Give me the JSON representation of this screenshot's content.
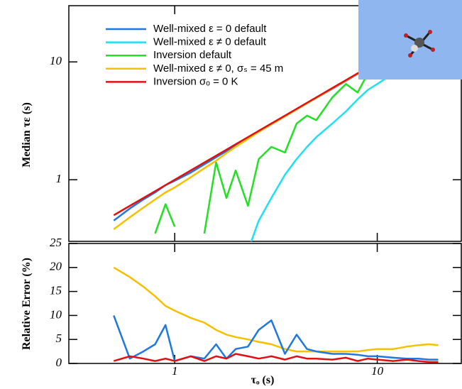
{
  "chart_data": [
    {
      "type": "line",
      "ylabel": "Median τε (s)",
      "xscale": "log",
      "yscale": "log",
      "xlim": [
        0.3,
        26
      ],
      "ylim": [
        0.3,
        30
      ],
      "yticks": [
        1,
        10
      ],
      "legend": "upper left",
      "x": [
        0.5,
        0.6,
        0.7,
        0.8,
        0.9,
        1,
        1.2,
        1.4,
        1.6,
        1.8,
        2,
        2.3,
        2.6,
        3,
        3.5,
        4,
        4.5,
        5,
        6,
        7,
        8,
        9,
        10,
        12,
        14,
        16,
        18,
        20
      ],
      "series": [
        {
          "name": "Well-mixed ε = 0 default",
          "color": "#1f77e0",
          "values": [
            0.45,
            0.57,
            0.68,
            0.78,
            0.9,
            0.98,
            1.15,
            1.35,
            1.55,
            1.75,
            1.95,
            2.25,
            2.55,
            2.95,
            3.45,
            3.95,
            4.45,
            4.95,
            5.9,
            6.9,
            7.9,
            8.9,
            9.9,
            11.8,
            13.8,
            15.8,
            17.8,
            19.8
          ]
        },
        {
          "name": "Well-mixed ε ≠ 0 default",
          "color": "#1ee0f0",
          "values": [
            null,
            null,
            null,
            null,
            null,
            null,
            null,
            null,
            null,
            null,
            null,
            0.25,
            0.45,
            0.7,
            1.1,
            1.5,
            1.9,
            2.3,
            3.0,
            3.8,
            4.8,
            5.8,
            6.5,
            8,
            10,
            11.5,
            13,
            15
          ]
        },
        {
          "name": "Inversion default",
          "color": "#22e022",
          "values": [
            null,
            null,
            null,
            0.35,
            0.62,
            0.4,
            null,
            0.35,
            1.4,
            0.7,
            1.2,
            0.6,
            1.5,
            1.9,
            1.7,
            3,
            3.5,
            3.2,
            5,
            6.5,
            5.5,
            8,
            9.5,
            12,
            14,
            16,
            18,
            20
          ]
        },
        {
          "name": "Well-mixed ε ≠ 0, σₛ = 45 m",
          "color": "#f5c000",
          "values": [
            0.38,
            0.48,
            0.58,
            0.68,
            0.78,
            0.86,
            1.05,
            1.25,
            1.45,
            1.68,
            1.9,
            2.22,
            2.55,
            2.95,
            3.45,
            3.95,
            4.45,
            4.95,
            5.95,
            6.95,
            7.95,
            8.95,
            9.95,
            11.9,
            13.9,
            15.9,
            17.9,
            19.9
          ]
        },
        {
          "name": "Inversion σₒ = 0 K",
          "color": "#e01010",
          "values": [
            0.5,
            0.6,
            0.7,
            0.8,
            0.9,
            1,
            1.2,
            1.4,
            1.6,
            1.8,
            2,
            2.3,
            2.6,
            3,
            3.5,
            4,
            4.5,
            5,
            6,
            7,
            8,
            9,
            10,
            12,
            14,
            16,
            18,
            20
          ]
        }
      ]
    },
    {
      "type": "line",
      "ylabel": "Relative Error (%)",
      "xlabel": "τₒ (s)",
      "xscale": "log",
      "xlim": [
        0.3,
        26
      ],
      "ylim": [
        0,
        25
      ],
      "yticks": [
        0,
        5,
        10,
        15,
        20,
        25
      ],
      "xticks": [
        1,
        10
      ],
      "x": [
        0.5,
        0.6,
        0.7,
        0.8,
        0.9,
        1,
        1.2,
        1.4,
        1.6,
        1.8,
        2,
        2.3,
        2.6,
        3,
        3.5,
        4,
        4.5,
        5,
        6,
        7,
        8,
        9,
        10,
        12,
        14,
        16,
        18,
        20
      ],
      "series": [
        {
          "color": "#f5c000",
          "values": [
            20,
            18,
            16,
            14,
            12,
            11,
            9.5,
            8.5,
            7,
            6,
            5.5,
            5,
            4.5,
            4,
            3,
            2.5,
            2.5,
            2.5,
            2.5,
            2.5,
            2.5,
            2.8,
            3,
            3,
            3.5,
            3.8,
            4,
            3.8
          ]
        },
        {
          "color": "#1f77e0",
          "values": [
            10,
            1,
            2.5,
            4,
            8,
            0.5,
            1.5,
            1,
            4,
            1,
            3,
            3.5,
            7,
            9,
            2,
            6,
            3,
            2.5,
            2,
            2,
            1.8,
            1.5,
            1.5,
            1.2,
            1,
            1,
            0.8,
            0.8
          ]
        },
        {
          "color": "#e01010",
          "values": [
            0.5,
            1.5,
            1,
            0.5,
            1,
            0.5,
            1.5,
            0.5,
            1.5,
            1,
            2,
            1.5,
            1,
            1.5,
            0.8,
            1.5,
            1,
            1,
            0.8,
            1.2,
            0.5,
            1,
            0.8,
            0.5,
            0.8,
            0.5,
            0.3,
            0.3
          ]
        }
      ]
    }
  ]
}
